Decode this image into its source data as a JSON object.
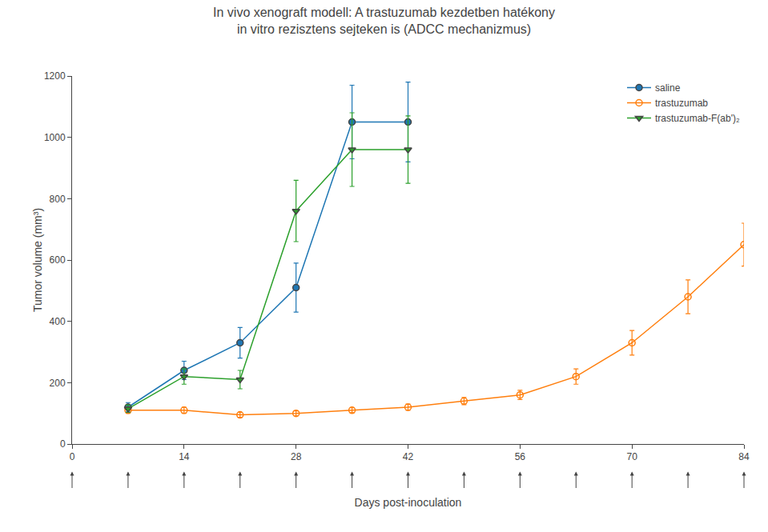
{
  "chart_data": {
    "type": "line",
    "title": "In vivo xenograft modell: A trastuzumab kezdetben hatékony",
    "subtitle": "in vitro rezisztens sejteken is (ADCC mechanizmus)",
    "xlabel": "Days post-inoculation",
    "ylabel": "Tumor volume (mm³)",
    "xlim": [
      0,
      84
    ],
    "ylim": [
      0,
      1200
    ],
    "xticks": [
      0,
      14,
      28,
      42,
      56,
      70,
      84
    ],
    "yticks": [
      0,
      200,
      400,
      600,
      800,
      1000,
      1200
    ],
    "grid": false,
    "legend": "upper right",
    "arrows": [
      0,
      7,
      14,
      21,
      28,
      35,
      42,
      49,
      56,
      63,
      70,
      77,
      84
    ],
    "series": [
      {
        "name": "saline",
        "marker": "circle",
        "x": [
          7,
          14,
          21,
          28,
          35,
          42
        ],
        "values": [
          120,
          240,
          330,
          510,
          1050,
          1050
        ],
        "error": [
          15,
          30,
          50,
          80,
          120,
          130
        ]
      },
      {
        "name": "trastuzumab",
        "marker": "circle-open",
        "x": [
          7,
          14,
          21,
          28,
          35,
          42,
          49,
          56,
          63,
          70,
          77,
          84
        ],
        "values": [
          110,
          110,
          95,
          100,
          110,
          120,
          140,
          160,
          220,
          330,
          480,
          650
        ],
        "error": [
          10,
          10,
          8,
          8,
          8,
          10,
          12,
          15,
          25,
          40,
          55,
          70
        ]
      },
      {
        "name": "trastuzumab-F(ab')₂",
        "marker": "triangle-down",
        "x": [
          7,
          14,
          21,
          28,
          35,
          42
        ],
        "values": [
          115,
          220,
          210,
          760,
          960,
          960
        ],
        "error": [
          12,
          25,
          30,
          100,
          120,
          110
        ]
      }
    ]
  }
}
